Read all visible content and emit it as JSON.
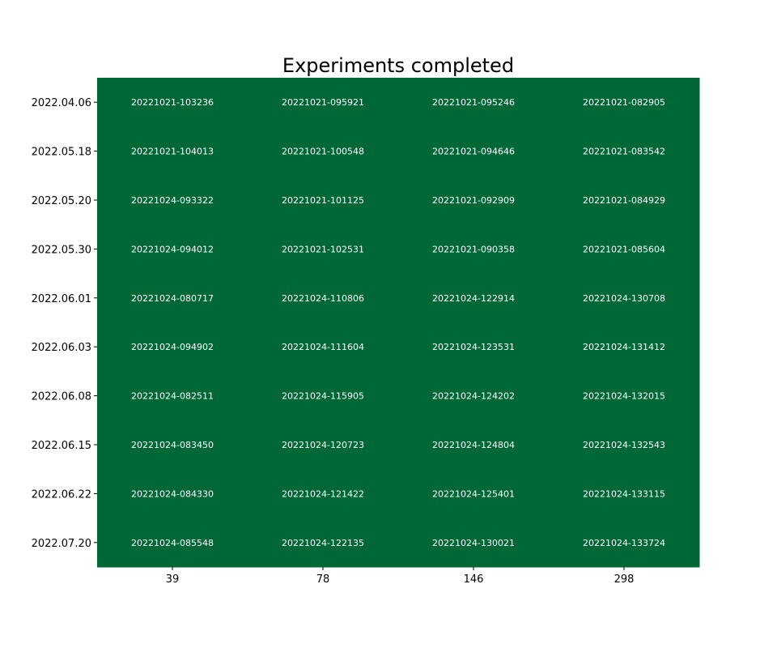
{
  "chart_data": {
    "type": "heatmap",
    "title": "Experiments completed",
    "xlabel": "",
    "ylabel": "",
    "x_categories": [
      "39",
      "78",
      "146",
      "298"
    ],
    "y_categories": [
      "2022.04.06",
      "2022.05.18",
      "2022.05.20",
      "2022.05.30",
      "2022.06.01",
      "2022.06.03",
      "2022.06.08",
      "2022.06.15",
      "2022.06.22",
      "2022.07.20"
    ],
    "cell_labels": [
      [
        "20221021-103236",
        "20221021-095921",
        "20221021-095246",
        "20221021-082905"
      ],
      [
        "20221021-104013",
        "20221021-100548",
        "20221021-094646",
        "20221021-083542"
      ],
      [
        "20221024-093322",
        "20221021-101125",
        "20221021-092909",
        "20221021-084929"
      ],
      [
        "20221024-094012",
        "20221021-102531",
        "20221021-090358",
        "20221021-085604"
      ],
      [
        "20221024-080717",
        "20221024-110806",
        "20221024-122914",
        "20221024-130708"
      ],
      [
        "20221024-094902",
        "20221024-111604",
        "20221024-123531",
        "20221024-131412"
      ],
      [
        "20221024-082511",
        "20221024-115905",
        "20221024-124202",
        "20221024-132015"
      ],
      [
        "20221024-083450",
        "20221024-120723",
        "20221024-124804",
        "20221024-132543"
      ],
      [
        "20221024-084330",
        "20221024-121422",
        "20221024-125401",
        "20221024-133115"
      ],
      [
        "20221024-085548",
        "20221024-122135",
        "20221024-130021",
        "20221024-133724"
      ]
    ],
    "cell_color": "#006837",
    "cell_text_color": "#ffffff",
    "grid": false,
    "legend": "none"
  }
}
